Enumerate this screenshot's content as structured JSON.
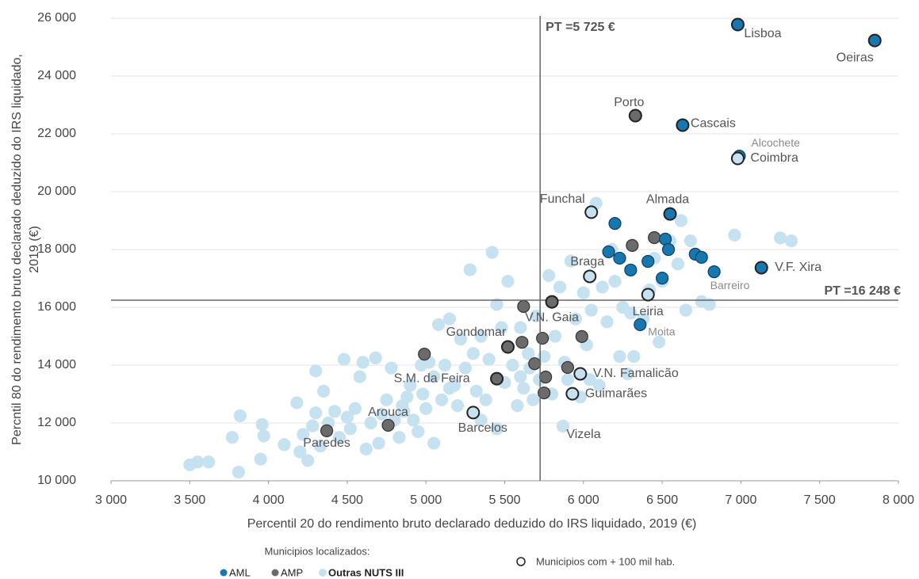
{
  "chart_data": {
    "type": "scatter",
    "x_label": "Percentil 20 do rendimento bruto declarado deduzido do IRS liquidado, 2019 (€)",
    "y_label": [
      "Percntil 80 do rendimento bruto declarado deduzido do IRS liquidado,",
      "2019 (€)"
    ],
    "xlim": [
      3000,
      8000
    ],
    "ylim": [
      10000,
      26000
    ],
    "xticks": [
      {
        "value": 3000,
        "label": "3 000"
      },
      {
        "value": 3500,
        "label": "3 500"
      },
      {
        "value": 4000,
        "label": "4 000"
      },
      {
        "value": 4500,
        "label": "4 500"
      },
      {
        "value": 5000,
        "label": "5 000"
      },
      {
        "value": 5500,
        "label": "5 500"
      },
      {
        "value": 6000,
        "label": "6 000"
      },
      {
        "value": 6500,
        "label": "6 500"
      },
      {
        "value": 7000,
        "label": "7 000"
      },
      {
        "value": 7500,
        "label": "7 500"
      },
      {
        "value": 8000,
        "label": "8 000"
      }
    ],
    "yticks": [
      {
        "value": 10000,
        "label": "10 000"
      },
      {
        "value": 12000,
        "label": "12 000"
      },
      {
        "value": 14000,
        "label": "14 000"
      },
      {
        "value": 16000,
        "label": "16 000"
      },
      {
        "value": 18000,
        "label": "18 000"
      },
      {
        "value": 20000,
        "label": "20 000"
      },
      {
        "value": 22000,
        "label": "22 000"
      },
      {
        "value": 24000,
        "label": "24 000"
      },
      {
        "value": 26000,
        "label": "26 000"
      }
    ],
    "grid": true,
    "reference_lines": [
      {
        "axis": "x",
        "value": 5725,
        "label": "PT =5 725 €"
      },
      {
        "axis": "y",
        "value": 16248,
        "label": "PT =16 248 €"
      }
    ],
    "legend_title": "Municipios localizados:",
    "large_marker_label": "Municipios com + 100 mil hab.",
    "series": [
      {
        "name": "AML",
        "color": "#1877ae",
        "x": [
          6200,
          6160,
          6230,
          6300,
          6410,
          6520,
          6540,
          6710,
          6750,
          6500
        ],
        "y": [
          18900,
          17920,
          17700,
          17290,
          17590,
          18360,
          18000,
          17840,
          17730,
          17010
        ]
      },
      {
        "name": "AMP",
        "color": "#6b6b6b",
        "x": [
          6310,
          6450,
          5620,
          5610,
          4990,
          5740,
          5990,
          5690,
          5900,
          5760,
          5750
        ],
        "y": [
          18140,
          18410,
          16030,
          14790,
          14380,
          14930,
          14990,
          14050,
          13920,
          13590,
          13040
        ]
      },
      {
        "name": "Outras NUTS III",
        "color": "#c6e1ef",
        "x": [
          3500,
          3550,
          3620,
          3770,
          3820,
          3810,
          3950,
          3960,
          3970,
          4100,
          4180,
          4200,
          4220,
          4250,
          4280,
          4300,
          4300,
          4330,
          4350,
          4380,
          4420,
          4450,
          4480,
          4500,
          4520,
          4550,
          4580,
          4600,
          4620,
          4650,
          4680,
          4700,
          4720,
          4750,
          4780,
          4800,
          4830,
          4850,
          4880,
          4900,
          4920,
          4950,
          4980,
          5000,
          5020,
          5050,
          5050,
          5080,
          5100,
          5120,
          5150,
          5180,
          5200,
          5220,
          5250,
          5280,
          5300,
          5320,
          5350,
          5380,
          5400,
          5420,
          5450,
          5480,
          5500,
          5520,
          5550,
          5580,
          5600,
          5620,
          5650,
          5680,
          5700,
          5720,
          5750,
          5780,
          5800,
          5820,
          5850,
          5880,
          5900,
          5920,
          5950,
          5980,
          6000,
          6020,
          6050,
          6080,
          6100,
          6120,
          6150,
          6180,
          6200,
          6230,
          6250,
          6280,
          6300,
          6320,
          6380,
          6420,
          6450,
          6480,
          6500,
          6550,
          6600,
          6620,
          6680,
          6750,
          6800,
          6960,
          7250,
          7320,
          6650,
          6040,
          5660,
          5450,
          4970,
          5150,
          4860,
          5350,
          5600
        ],
        "y": [
          10550,
          10650,
          10650,
          11500,
          12250,
          10300,
          10750,
          11950,
          11550,
          11250,
          12700,
          11000,
          11600,
          10700,
          11900,
          12350,
          13800,
          11200,
          13100,
          12000,
          12400,
          11500,
          14200,
          12200,
          11800,
          12500,
          13600,
          14100,
          11100,
          12000,
          14250,
          11300,
          12300,
          12800,
          13900,
          12100,
          11500,
          12600,
          12900,
          13300,
          12100,
          11700,
          13000,
          12500,
          14100,
          13600,
          11300,
          15400,
          12800,
          14000,
          15600,
          13300,
          12600,
          14900,
          13900,
          17300,
          14400,
          13100,
          15000,
          12800,
          14200,
          17900,
          11800,
          15300,
          13400,
          16900,
          14000,
          12600,
          15300,
          13200,
          14400,
          12800,
          15700,
          13500,
          14300,
          17100,
          13000,
          15000,
          16700,
          14100,
          13500,
          17600,
          15600,
          12900,
          16500,
          14700,
          15900,
          19600,
          13300,
          16700,
          15500,
          18000,
          16900,
          14300,
          16000,
          13700,
          15800,
          14300,
          15600,
          16600,
          17700,
          14800,
          16900,
          18300,
          17500,
          19000,
          18300,
          16200,
          16100,
          18500,
          18400,
          18300,
          15900,
          13500,
          13900,
          16100,
          14000,
          13200,
          12400,
          12100,
          13600
        ]
      }
    ],
    "highlighted": [
      {
        "name": "Lisboa",
        "group": 0,
        "x": 6980,
        "y": 25780,
        "large": true
      },
      {
        "name": "Oeiras",
        "group": 0,
        "x": 7850,
        "y": 25230,
        "large": true
      },
      {
        "name": "Porto",
        "group": 1,
        "x": 6330,
        "y": 22630,
        "large": true
      },
      {
        "name": "Cascais",
        "group": 0,
        "x": 6630,
        "y": 22300,
        "large": true
      },
      {
        "name": "Alcochete",
        "group": 0,
        "x": 6990,
        "y": 21230,
        "large": false
      },
      {
        "name": "Coimbra",
        "group": 2,
        "x": 6980,
        "y": 21150,
        "large": true
      },
      {
        "name": "Funchal",
        "group": 2,
        "x": 6050,
        "y": 19290,
        "large": true
      },
      {
        "name": "Almada",
        "group": 0,
        "x": 6550,
        "y": 19230,
        "large": true
      },
      {
        "name": "Braga",
        "group": 2,
        "x": 6040,
        "y": 17070,
        "large": true
      },
      {
        "name": "V.F. Xira",
        "group": 0,
        "x": 7130,
        "y": 17370,
        "large": true
      },
      {
        "name": "Barreiro",
        "group": 0,
        "x": 6830,
        "y": 17230,
        "large": false
      },
      {
        "name": "Leiria",
        "group": 2,
        "x": 6410,
        "y": 16440,
        "large": true
      },
      {
        "name": "V.N. Gaia",
        "group": 1,
        "x": 5800,
        "y": 16190,
        "large": true
      },
      {
        "name": "Moita",
        "group": 0,
        "x": 6360,
        "y": 15400,
        "large": false
      },
      {
        "name": "Gondomar",
        "group": 1,
        "x": 5520,
        "y": 14630,
        "large": true
      },
      {
        "name": "S.M. da Feira",
        "group": 1,
        "x": 5450,
        "y": 13530,
        "large": true
      },
      {
        "name": "V.N. Famalicão",
        "group": 2,
        "x": 5980,
        "y": 13700,
        "large": true
      },
      {
        "name": "Guimarães",
        "group": 2,
        "x": 5930,
        "y": 13010,
        "large": true
      },
      {
        "name": "Barcelos",
        "group": 2,
        "x": 5300,
        "y": 12360,
        "large": true
      },
      {
        "name": "Arouca",
        "group": 1,
        "x": 4760,
        "y": 11920,
        "large": false
      },
      {
        "name": "Paredes",
        "group": 1,
        "x": 4370,
        "y": 11730,
        "large": false
      },
      {
        "name": "Vizela",
        "group": 2,
        "x": 5870,
        "y": 11890,
        "large": false
      }
    ]
  }
}
